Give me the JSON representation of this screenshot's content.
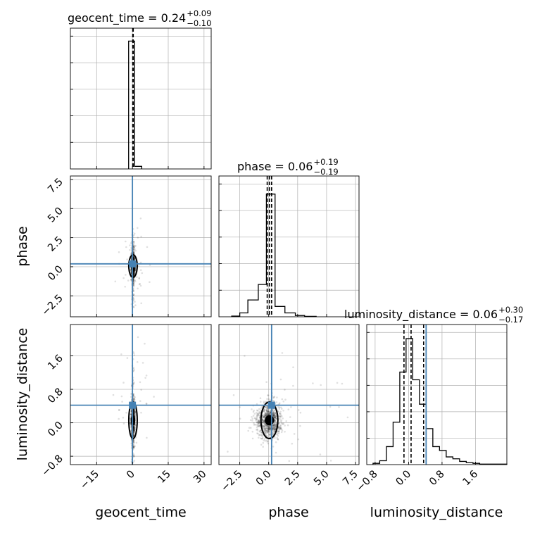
{
  "chart_data": {
    "type": "corner",
    "parameters": [
      {
        "name": "geocent_time",
        "label": "geocent_time",
        "range": [
          -26,
          33
        ],
        "ticks": [
          -15,
          0,
          15,
          30
        ],
        "tick_labels": [
          "−15",
          "0",
          "15",
          "30"
        ],
        "truth": 0.0
      },
      {
        "name": "phase",
        "label": "phase",
        "range": [
          -4.3,
          7.8
        ],
        "ticks": [
          -2.5,
          0.0,
          2.5,
          5.0,
          7.5
        ],
        "tick_labels": [
          "−2.5",
          "0.0",
          "2.5",
          "5.0",
          "7.5"
        ],
        "truth": 0.25
      },
      {
        "name": "luminosity_distance",
        "label": "luminosity_distance",
        "range": [
          -1.0,
          2.35
        ],
        "ticks": [
          -0.8,
          0.0,
          0.8,
          1.6
        ],
        "tick_labels": [
          "−0.8",
          "0.0",
          "0.8",
          "1.6"
        ],
        "truth": 0.42
      }
    ],
    "titles": [
      {
        "text": "geocent_time = 0.24",
        "sup": "+0.09",
        "sub": "−0.10"
      },
      {
        "text": "phase = 0.06",
        "sup": "+0.19",
        "sub": "−0.19"
      },
      {
        "text": "luminosity_distance = 0.06",
        "sup": "+0.30",
        "sub": "−0.17"
      }
    ],
    "histograms": [
      {
        "parameter": "geocent_time",
        "bin_edges": [
          -1.6,
          0.9,
          3.9
        ],
        "counts": [
          0.99,
          0.02
        ],
        "quantiles": [
          0.14,
          0.24,
          0.33
        ]
      },
      {
        "parameter": "phase",
        "bin_edges": [
          -3.2,
          -2.5,
          -1.8,
          -0.9,
          -0.2,
          0.55,
          1.4,
          2.3,
          3.1,
          4.1
        ],
        "counts": [
          0.005,
          0.03,
          0.13,
          0.25,
          0.95,
          0.08,
          0.03,
          0.01,
          0.003
        ],
        "quantiles": [
          -0.13,
          0.06,
          0.25
        ]
      },
      {
        "parameter": "luminosity_distance",
        "bin_edges": [
          -0.85,
          -0.69,
          -0.53,
          -0.37,
          -0.21,
          -0.06,
          0.1,
          0.26,
          0.42,
          0.58,
          0.74,
          0.9,
          1.06,
          1.22,
          1.38,
          1.54,
          1.7,
          2.35
        ],
        "counts": [
          0.01,
          0.03,
          0.14,
          0.33,
          0.72,
          0.98,
          0.66,
          0.47,
          0.28,
          0.14,
          0.11,
          0.06,
          0.045,
          0.025,
          0.015,
          0.01,
          0.004
        ],
        "quantiles": [
          -0.11,
          0.06,
          0.36
        ]
      }
    ]
  }
}
